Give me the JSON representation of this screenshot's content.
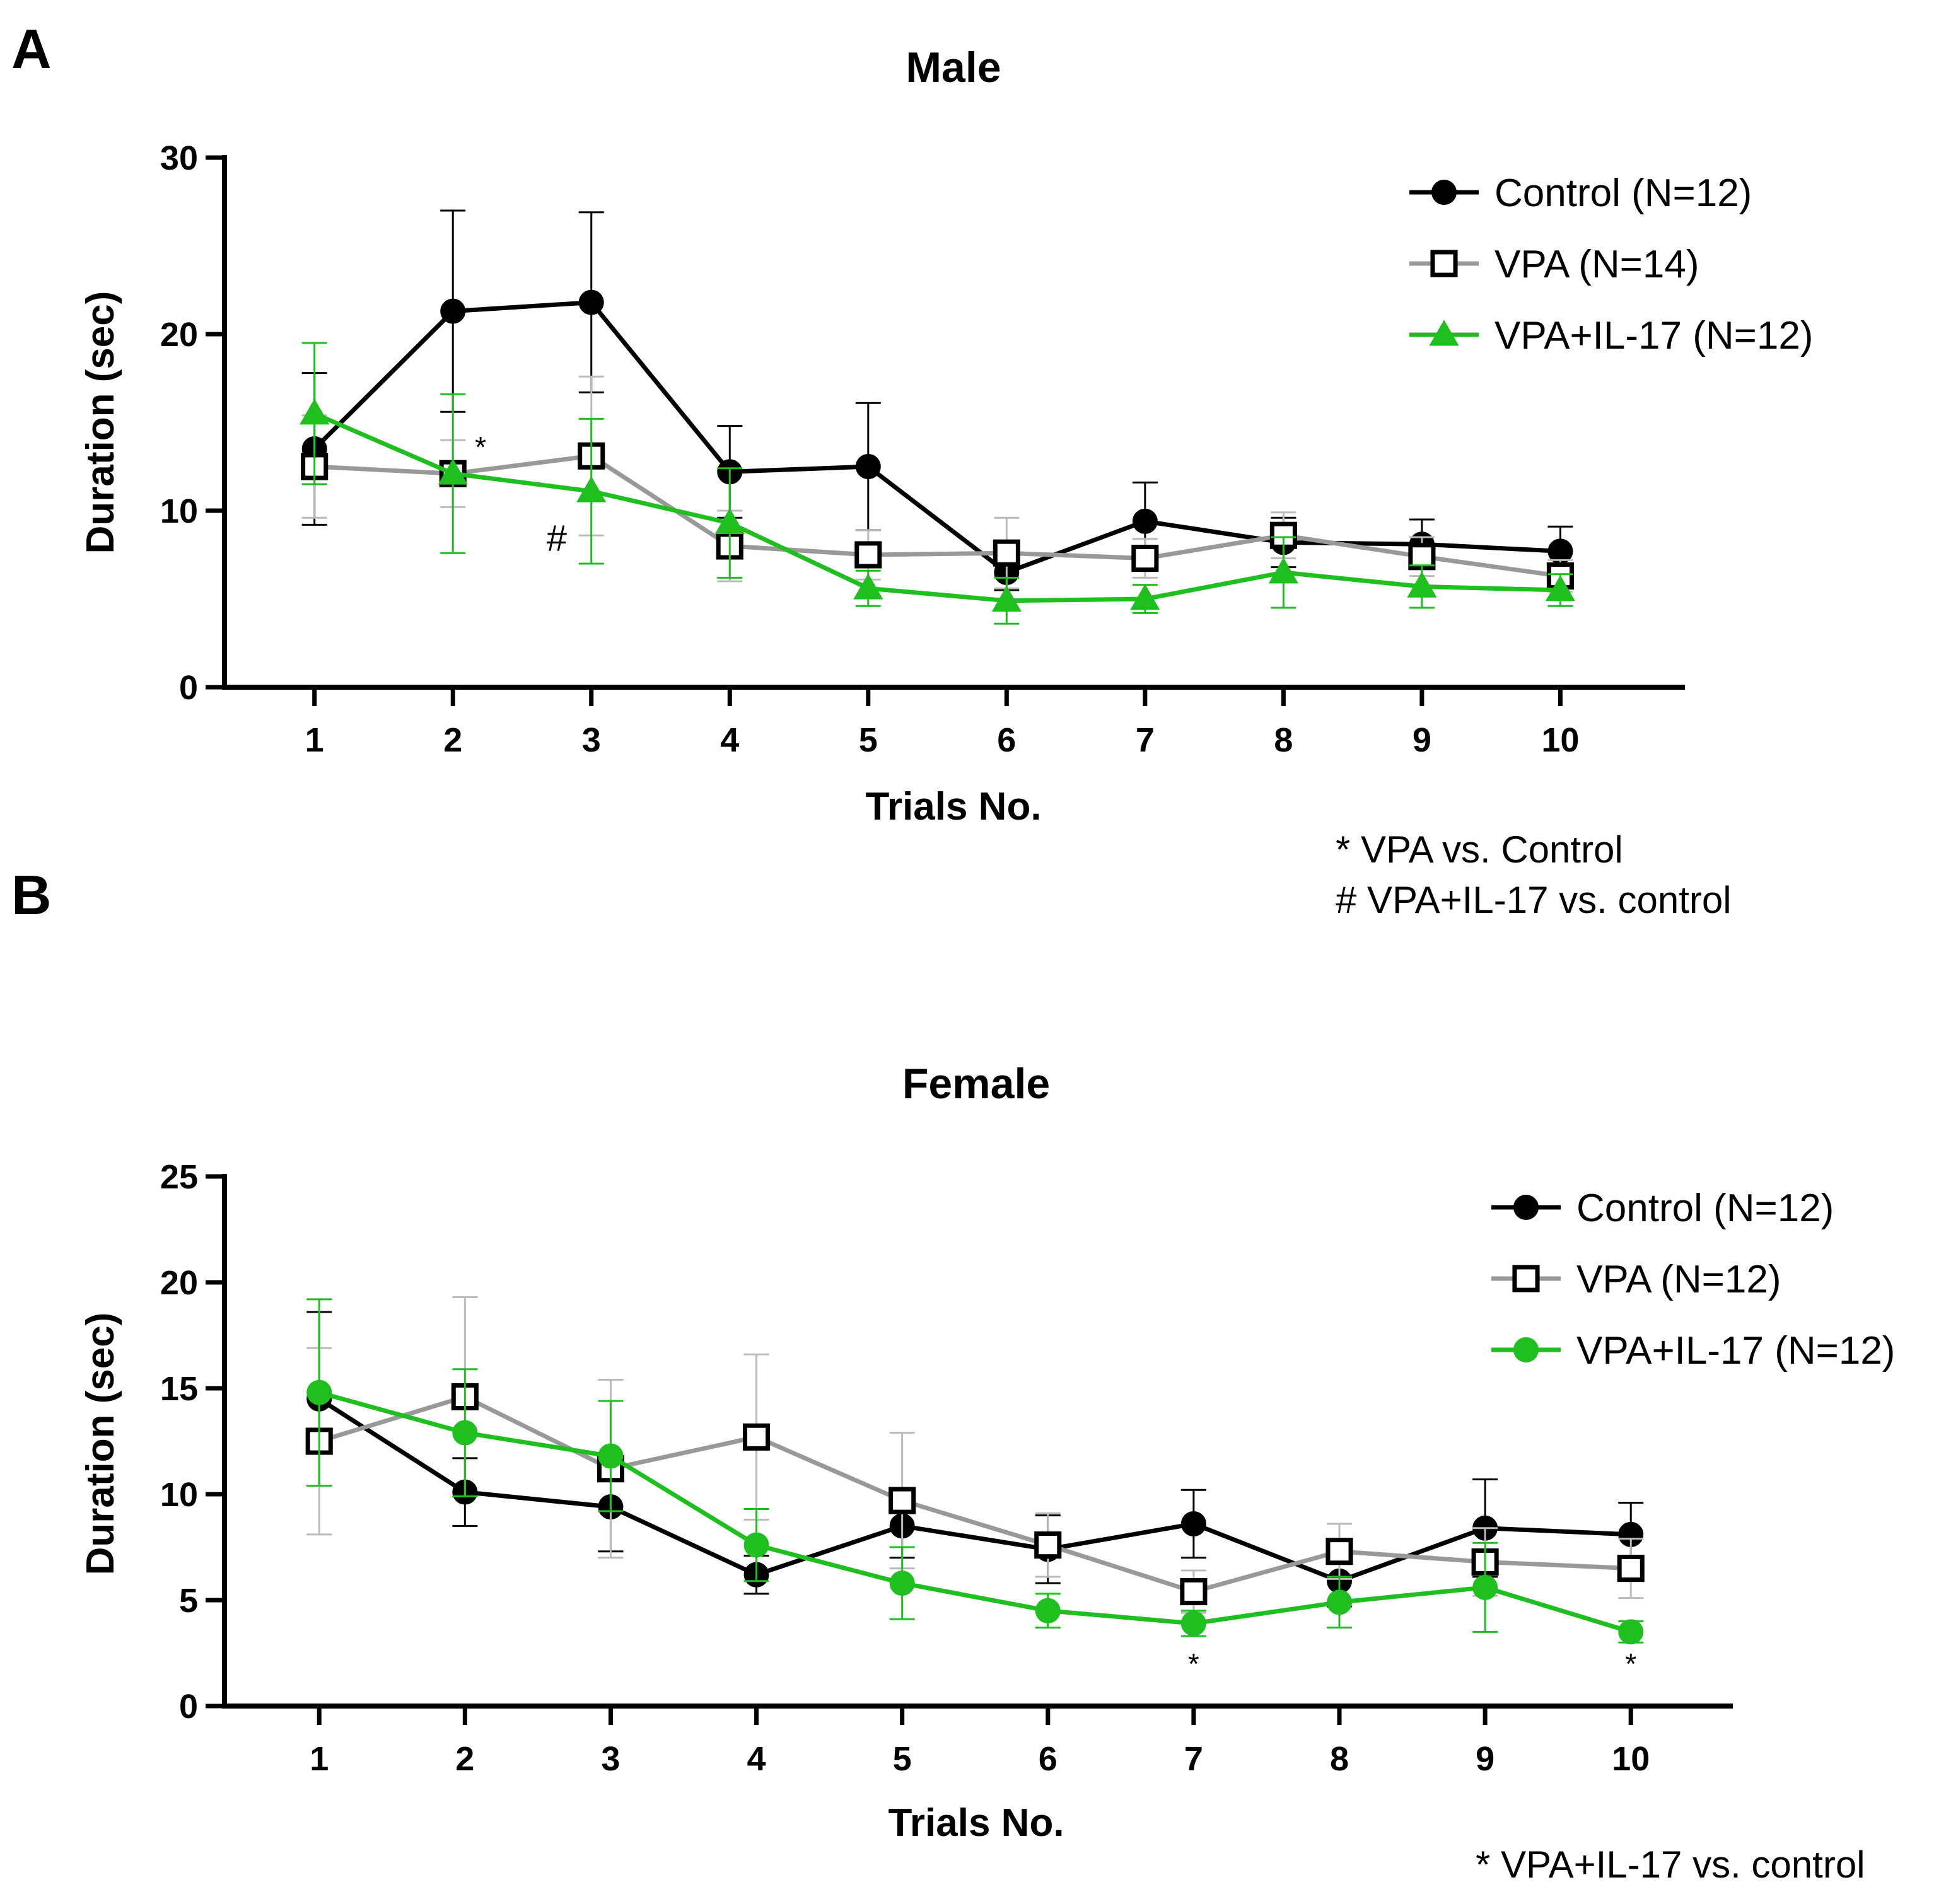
{
  "panels": {
    "a": {
      "letter": "A"
    },
    "b": {
      "letter": "B"
    }
  },
  "significance": {
    "male": [
      "* VPA vs. Control",
      "# VPA+IL-17 vs. control"
    ],
    "female": [
      "* VPA+IL-17 vs. control"
    ]
  },
  "chart_data": [
    {
      "type": "line",
      "title": "Male",
      "xlabel": "Trials No.",
      "ylabel": "Duration (sec)",
      "categories": [
        "1",
        "2",
        "3",
        "4",
        "5",
        "6",
        "7",
        "8",
        "9",
        "10"
      ],
      "xlim": [
        0.35,
        10.9
      ],
      "ylim": [
        0,
        30
      ],
      "yticks": [
        "0",
        "10",
        "20",
        "30"
      ],
      "legend_position": "top-right",
      "series": [
        {
          "name": "Control (N=12)",
          "marker": "circle",
          "color": "#000000",
          "values": [
            13.5,
            21.3,
            21.8,
            12.2,
            12.5,
            6.5,
            9.4,
            8.2,
            8.1,
            7.7
          ],
          "errors": [
            4.3,
            5.7,
            5.1,
            2.6,
            3.6,
            1.0,
            2.2,
            1.4,
            1.4,
            1.4
          ]
        },
        {
          "name": "VPA (N=14)",
          "marker": "open-square",
          "color": "#999999",
          "values": [
            12.5,
            12.1,
            13.1,
            8.0,
            7.5,
            7.6,
            7.3,
            8.6,
            7.4,
            6.3
          ],
          "errors": [
            2.9,
            1.9,
            4.5,
            2.0,
            1.4,
            2.0,
            1.1,
            1.3,
            1.1,
            0.9
          ]
        },
        {
          "name": "VPA+IL-17 (N=12)",
          "marker": "triangle",
          "color": "#1fbf1f",
          "values": [
            15.5,
            12.1,
            11.1,
            9.3,
            5.6,
            4.9,
            5.0,
            6.5,
            5.7,
            5.5
          ],
          "errors": [
            4.0,
            4.5,
            4.1,
            3.1,
            1.0,
            1.3,
            0.8,
            2.0,
            1.2,
            0.9
          ]
        }
      ],
      "annotations": [
        {
          "text": "*",
          "x": 2.2,
          "y": 13.6
        },
        {
          "text": "#",
          "x": 2.75,
          "y": 8.3
        }
      ]
    },
    {
      "type": "line",
      "title": "Female",
      "xlabel": "Trials No.",
      "ylabel": "Duration (sec)",
      "categories": [
        "1",
        "2",
        "3",
        "4",
        "5",
        "6",
        "7",
        "8",
        "9",
        "10"
      ],
      "xlim": [
        0.35,
        10.7
      ],
      "ylim": [
        0,
        25
      ],
      "yticks": [
        "0",
        "5",
        "10",
        "15",
        "20",
        "25"
      ],
      "legend_position": "top-right",
      "series": [
        {
          "name": "Control (N=12)",
          "marker": "circle",
          "color": "#000000",
          "values": [
            14.5,
            10.1,
            9.4,
            6.2,
            8.5,
            7.4,
            8.6,
            5.9,
            8.4,
            8.1
          ],
          "errors": [
            4.1,
            1.6,
            2.1,
            0.9,
            1.5,
            1.6,
            1.6,
            1.2,
            2.3,
            1.5
          ]
        },
        {
          "name": "VPA (N=12)",
          "marker": "open-square",
          "color": "#999999",
          "values": [
            12.5,
            14.6,
            11.2,
            12.7,
            9.7,
            7.6,
            5.4,
            7.3,
            6.8,
            6.5
          ],
          "errors": [
            4.4,
            4.7,
            4.2,
            3.9,
            3.2,
            1.5,
            1.0,
            1.3,
            1.6,
            1.4
          ]
        },
        {
          "name": "VPA+IL-17 (N=12)",
          "marker": "circle",
          "color": "#1fbf1f",
          "values": [
            14.8,
            12.9,
            11.8,
            7.6,
            5.8,
            4.5,
            3.9,
            4.9,
            5.6,
            3.5
          ],
          "errors": [
            4.4,
            3.0,
            2.6,
            1.7,
            1.7,
            0.8,
            0.6,
            1.2,
            2.1,
            0.5
          ]
        }
      ],
      "annotations": [
        {
          "text": "*",
          "x": 7,
          "y": 2.0
        },
        {
          "text": "*",
          "x": 10,
          "y": 2.0
        }
      ]
    }
  ]
}
